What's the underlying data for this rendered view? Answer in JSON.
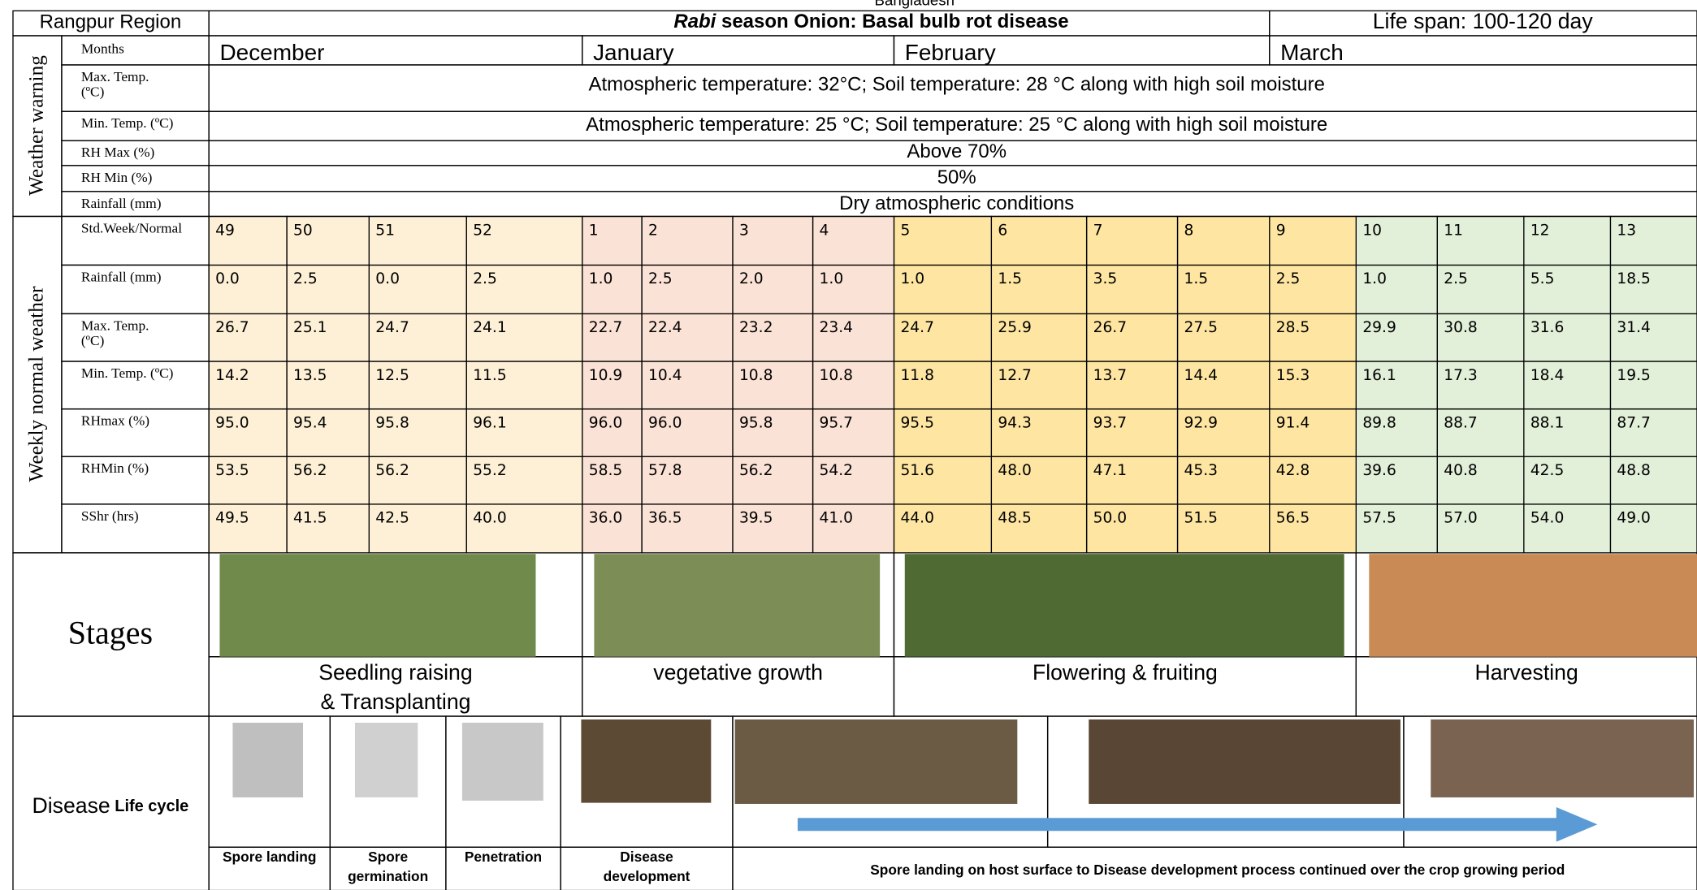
{
  "top_caption": "Bangladesh",
  "header": {
    "region": "Rangpur Region",
    "title_italic": "Rabi",
    "title_rest": " season Onion: Basal bulb rot disease",
    "life_span": "Life span: 100-120 day"
  },
  "weather_warning": {
    "label": "Weather warning",
    "months_label": [
      "Months"
    ],
    "months": [
      "December",
      "January",
      "February",
      "March"
    ],
    "rows": [
      {
        "label": [
          "Max. Temp.",
          "(ºC)"
        ],
        "text": "Atmospheric temperature: 32°C; Soil temperature: 28 °C along with high soil moisture"
      },
      {
        "label": [
          "Min. Temp. (ºC)"
        ],
        "text": "Atmospheric temperature: 25 °C; Soil temperature: 25 °C along with high soil moisture"
      },
      {
        "label": [
          "RH Max (%)"
        ],
        "text": "Above 70%"
      },
      {
        "label": [
          "RH Min (%)"
        ],
        "text": "50%"
      },
      {
        "label": [
          "Rainfall (mm)"
        ],
        "text": "Dry atmospheric conditions"
      }
    ]
  },
  "weekly": {
    "label": "Weekly normal weather",
    "rows": [
      {
        "label": [
          "Std.Week/Normal"
        ],
        "values": [
          "49",
          "50",
          "51",
          "52",
          "1",
          "2",
          "3",
          "4",
          "5",
          "6",
          "7",
          "8",
          "9",
          "10",
          "11",
          "12",
          "13"
        ]
      },
      {
        "label": [
          "Rainfall (mm)"
        ],
        "values": [
          "0.0",
          "2.5",
          "0.0",
          "2.5",
          "1.0",
          "2.5",
          "2.0",
          "1.0",
          "1.0",
          "1.5",
          "3.5",
          "1.5",
          "2.5",
          "1.0",
          "2.5",
          "5.5",
          "18.5"
        ]
      },
      {
        "label": [
          "Max. Temp.",
          "(ºC)"
        ],
        "values": [
          "26.7",
          "25.1",
          "24.7",
          "24.1",
          "22.7",
          "22.4",
          "23.2",
          "23.4",
          "24.7",
          "25.9",
          "26.7",
          "27.5",
          "28.5",
          "29.9",
          "30.8",
          "31.6",
          "31.4"
        ]
      },
      {
        "label": [
          "Min. Temp. (ºC)"
        ],
        "values": [
          "14.2",
          "13.5",
          "12.5",
          "11.5",
          "10.9",
          "10.4",
          "10.8",
          "10.8",
          "11.8",
          "12.7",
          "13.7",
          "14.4",
          "15.3",
          "16.1",
          "17.3",
          "18.4",
          "19.5"
        ]
      },
      {
        "label": [
          "RHmax (%)"
        ],
        "values": [
          "95.0",
          "95.4",
          "95.8",
          "96.1",
          "96.0",
          "96.0",
          "95.8",
          "95.7",
          "95.5",
          "94.3",
          "93.7",
          "92.9",
          "91.4",
          "89.8",
          "88.7",
          "88.1",
          "87.7"
        ]
      },
      {
        "label": [
          "RHMin (%)"
        ],
        "values": [
          "53.5",
          "56.2",
          "56.2",
          "55.2",
          "58.5",
          "57.8",
          "56.2",
          "54.2",
          "51.6",
          "48.0",
          "47.1",
          "45.3",
          "42.8",
          "39.6",
          "40.8",
          "42.5",
          "48.8"
        ]
      },
      {
        "label": [
          "SShr (hrs)"
        ],
        "values": [
          "49.5",
          "41.5",
          "42.5",
          "40.0",
          "36.0",
          "36.5",
          "39.5",
          "41.0",
          "44.0",
          "48.5",
          "50.0",
          "51.5",
          "56.5",
          "57.5",
          "57.0",
          "54.0",
          "49.0"
        ]
      }
    ]
  },
  "stages": {
    "label": "Stages",
    "items": [
      [
        "Seedling raising",
        "& Transplanting"
      ],
      [
        "vegetative growth"
      ],
      [
        "Flowering & fruiting"
      ],
      [
        "Harvesting"
      ]
    ]
  },
  "disease": {
    "label": "Disease",
    "label_small": "Life cycle",
    "steps": [
      [
        "Spore landing"
      ],
      [
        "Spore",
        "germination"
      ],
      [
        "Penetration"
      ],
      [
        "Disease",
        "development"
      ]
    ],
    "note": "Spore landing on host surface to Disease development process continued over the crop growing period"
  }
}
